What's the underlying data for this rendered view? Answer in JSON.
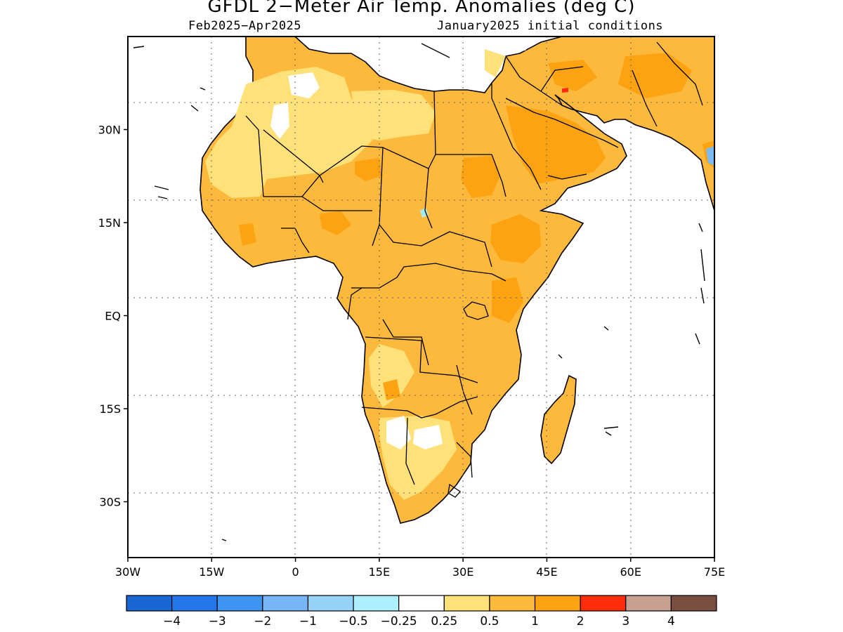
{
  "title": "GFDL 2−Meter Air Temp. Anomalies (deg C)",
  "subtitle_left": "Feb2025−Apr2025",
  "subtitle_right": "January2025 initial conditions",
  "map": {
    "lon_range": [
      -30,
      75
    ],
    "lat_range": [
      -39,
      45
    ],
    "x_ticks": [
      {
        "lon": -30,
        "label": "30W"
      },
      {
        "lon": -15,
        "label": "15W"
      },
      {
        "lon": 0,
        "label": "0"
      },
      {
        "lon": 15,
        "label": "15E"
      },
      {
        "lon": 30,
        "label": "30E"
      },
      {
        "lon": 45,
        "label": "45E"
      },
      {
        "lon": 60,
        "label": "60E"
      },
      {
        "lon": 75,
        "label": "75E"
      }
    ],
    "y_ticks": [
      {
        "lat": 30,
        "label": "30N"
      },
      {
        "lat": 15,
        "label": "15N"
      },
      {
        "lat": 0,
        "label": "EQ"
      },
      {
        "lat": -15,
        "label": "15S"
      },
      {
        "lat": -30,
        "label": "30S"
      }
    ],
    "grid": "dotted",
    "colors": {
      "ocean": "#ffffff",
      "land_default": "#fdb93c",
      "warm_strong": "#fda210",
      "warm_weak": "#ffe17a",
      "neutral": "#ffffff",
      "cool_weak": "#a6ecf7",
      "cool": "#7cbaf6",
      "hot": "#ff2d0c",
      "borders": "#000000"
    }
  },
  "colorbar": {
    "colors": [
      "#1a66d3",
      "#2477ea",
      "#3d94f1",
      "#76b6f6",
      "#96d2f8",
      "#aeefff",
      "#ffffff",
      "#ffe17a",
      "#fdb93c",
      "#fda210",
      "#ff2d0c",
      "#c8a08f",
      "#7a4e3e"
    ],
    "labels": [
      "−4",
      "−3",
      "−2",
      "−1",
      "−0.5",
      "−0.25",
      "0.25",
      "0.5",
      "1",
      "2",
      "3",
      "4"
    ]
  }
}
